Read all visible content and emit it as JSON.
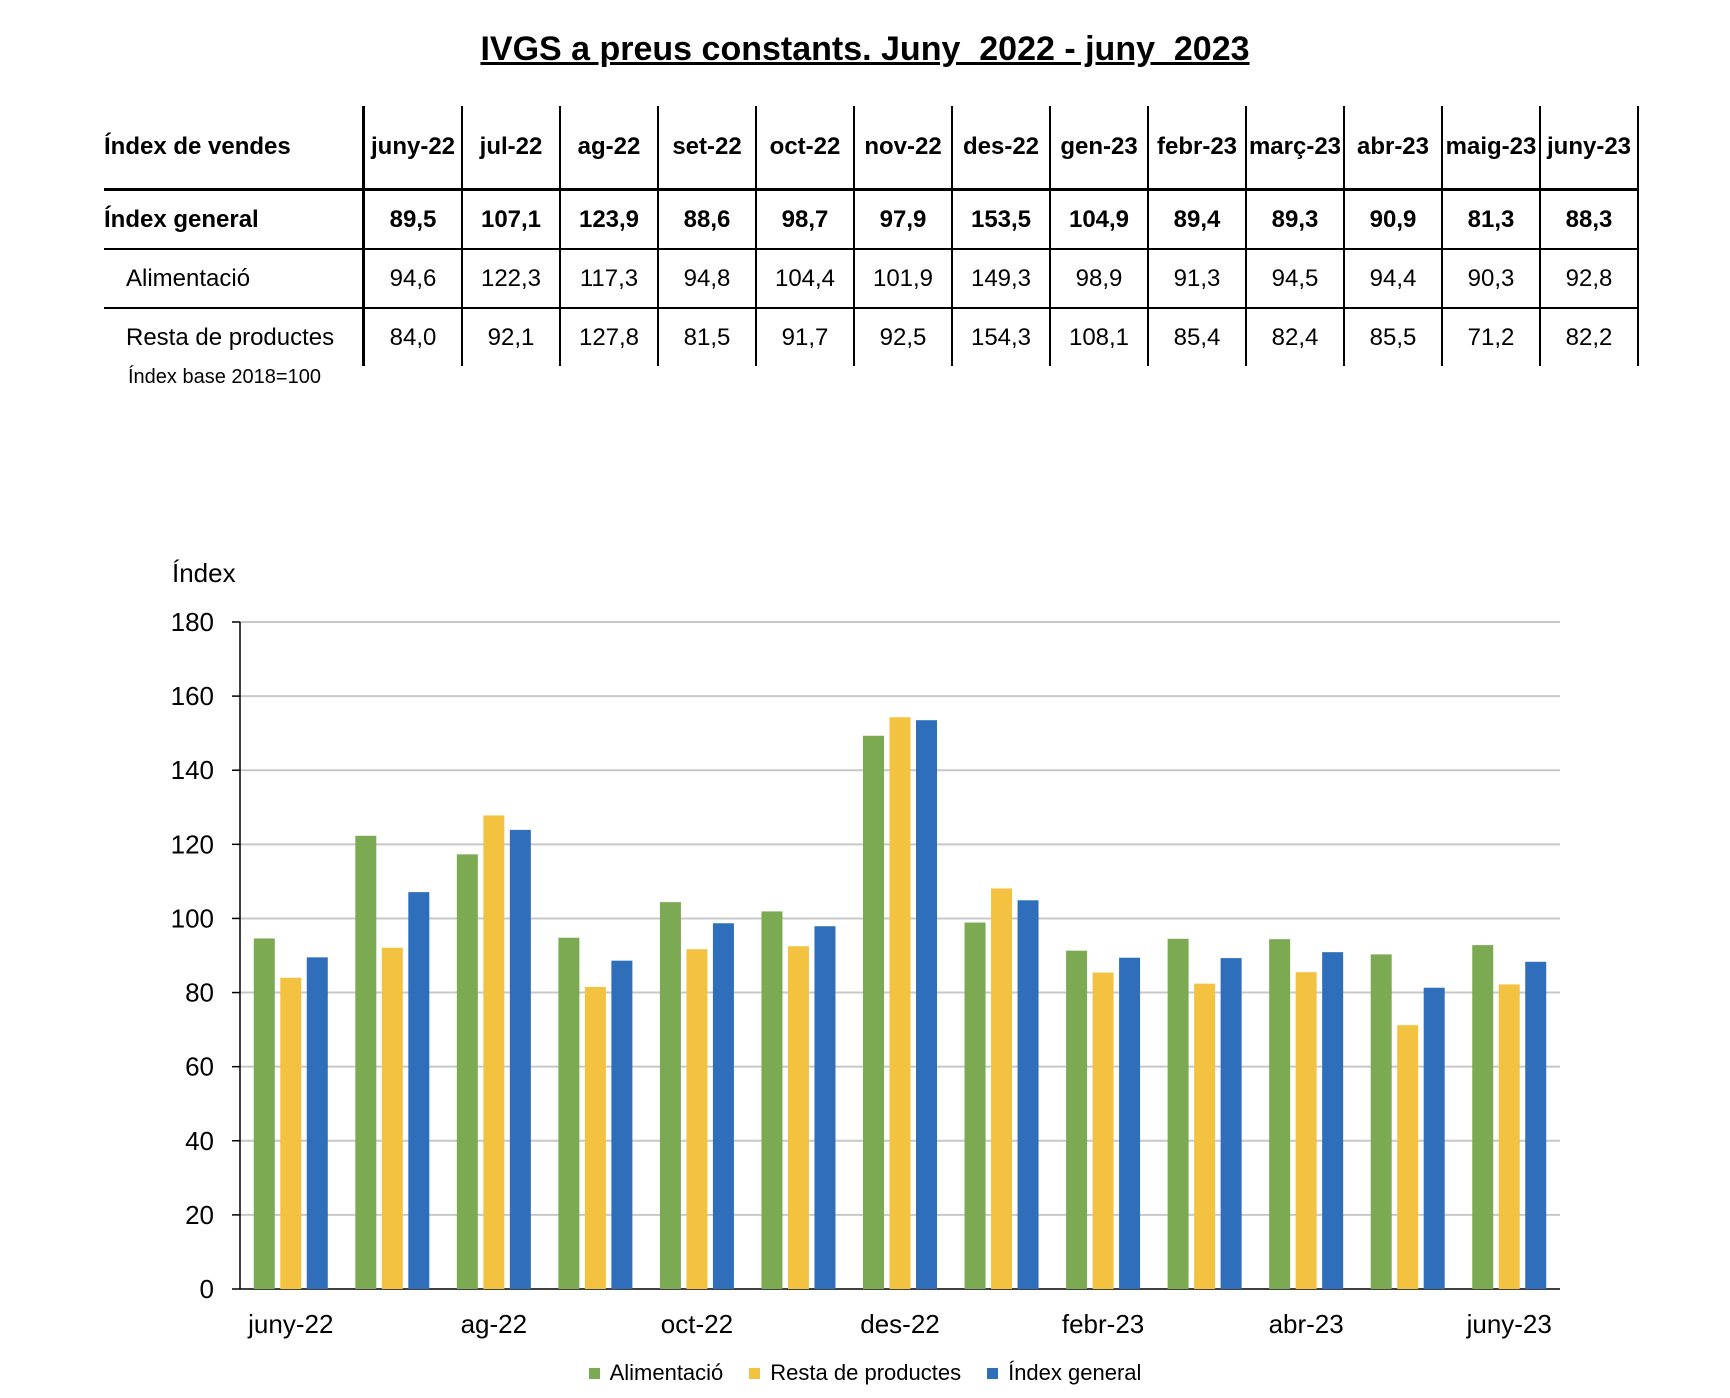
{
  "title": "IVGS a preus constants. Juny  2022 - juny  2023",
  "table": {
    "corner_label": "Índex de vendes",
    "columns": [
      "juny-22",
      "jul-22",
      "ag-22",
      "set-22",
      "oct-22",
      "nov-22",
      "des-22",
      "gen-23",
      "febr-23",
      "març-23",
      "abr-23",
      "maig-23",
      "juny-23"
    ],
    "rows": [
      {
        "label": "Índex general",
        "values": [
          "89,5",
          "107,1",
          "123,9",
          "88,6",
          "98,7",
          "97,9",
          "153,5",
          "104,9",
          "89,4",
          "89,3",
          "90,9",
          "81,3",
          "88,3"
        ]
      },
      {
        "label": "Alimentació",
        "values": [
          "94,6",
          "122,3",
          "117,3",
          "94,8",
          "104,4",
          "101,9",
          "149,3",
          "98,9",
          "91,3",
          "94,5",
          "94,4",
          "90,3",
          "92,8"
        ]
      },
      {
        "label": "Resta de productes",
        "values": [
          "84,0",
          "92,1",
          "127,8",
          "81,5",
          "91,7",
          "92,5",
          "154,3",
          "108,1",
          "85,4",
          "82,4",
          "85,5",
          "71,2",
          "82,2"
        ]
      }
    ],
    "note": "Índex base 2018=100"
  },
  "chart_data": {
    "type": "bar",
    "title": "",
    "ylabel": "Índex",
    "xlabel": "",
    "ylim": [
      0,
      180
    ],
    "yticks": [
      0,
      20,
      40,
      60,
      80,
      100,
      120,
      140,
      160,
      180
    ],
    "categories": [
      "juny-22",
      "jul-22",
      "ag-22",
      "set-22",
      "oct-22",
      "nov-22",
      "des-22",
      "gen-23",
      "febr-23",
      "març-23",
      "abr-23",
      "maig-23",
      "juny-23"
    ],
    "xtick_labels": [
      "juny-22",
      "",
      "ag-22",
      "",
      "oct-22",
      "",
      "des-22",
      "",
      "febr-23",
      "",
      "abr-23",
      "",
      "juny-23"
    ],
    "grid": true,
    "legend_position": "bottom",
    "series": [
      {
        "name": "Alimentació",
        "color": "#7BAA53",
        "values": [
          94.6,
          122.3,
          117.3,
          94.8,
          104.4,
          101.9,
          149.3,
          98.9,
          91.3,
          94.5,
          94.4,
          90.3,
          92.8
        ]
      },
      {
        "name": "Resta de productes",
        "color": "#F2C240",
        "values": [
          84.0,
          92.1,
          127.8,
          81.5,
          91.7,
          92.5,
          154.3,
          108.1,
          85.4,
          82.4,
          85.5,
          71.2,
          82.2
        ]
      },
      {
        "name": "Índex general",
        "color": "#2E6EBB",
        "values": [
          89.5,
          107.1,
          123.9,
          88.6,
          98.7,
          97.9,
          153.5,
          104.9,
          89.4,
          89.3,
          90.9,
          81.3,
          88.3
        ]
      }
    ]
  }
}
